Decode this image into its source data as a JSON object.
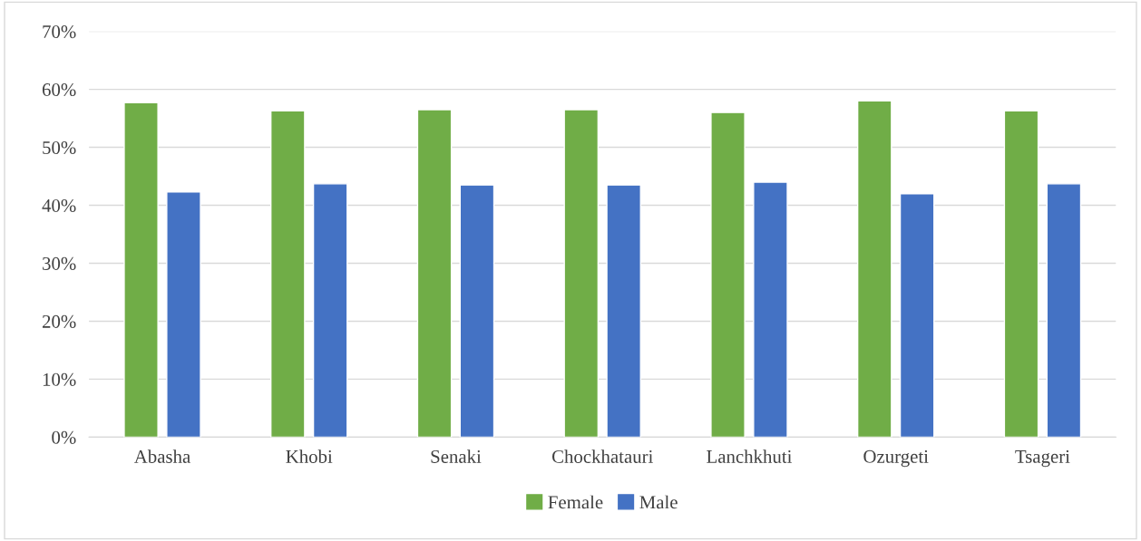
{
  "chart_data": {
    "type": "bar",
    "categories": [
      "Abasha",
      "Khobi",
      "Senaki",
      "Chockhatauri",
      "Lanchkhuti",
      "Ozurgeti",
      "Tsageri"
    ],
    "series": [
      {
        "name": "Female",
        "color": "#70ad47",
        "values": [
          57.7,
          56.3,
          56.5,
          56.5,
          56.0,
          58.0,
          56.3
        ]
      },
      {
        "name": "Male",
        "color": "#4472c4",
        "values": [
          42.3,
          43.7,
          43.5,
          43.5,
          44.0,
          42.0,
          43.7
        ]
      }
    ],
    "ylim": [
      0,
      70
    ],
    "yticks": [
      {
        "value": 0,
        "label": "0%"
      },
      {
        "value": 10,
        "label": "10%"
      },
      {
        "value": 20,
        "label": "20%"
      },
      {
        "value": 30,
        "label": "30%"
      },
      {
        "value": 40,
        "label": "40%"
      },
      {
        "value": 50,
        "label": "50%"
      },
      {
        "value": 60,
        "label": "60%"
      },
      {
        "value": 70,
        "label": "70%"
      }
    ],
    "grid": "y",
    "legend": "bottom"
  }
}
